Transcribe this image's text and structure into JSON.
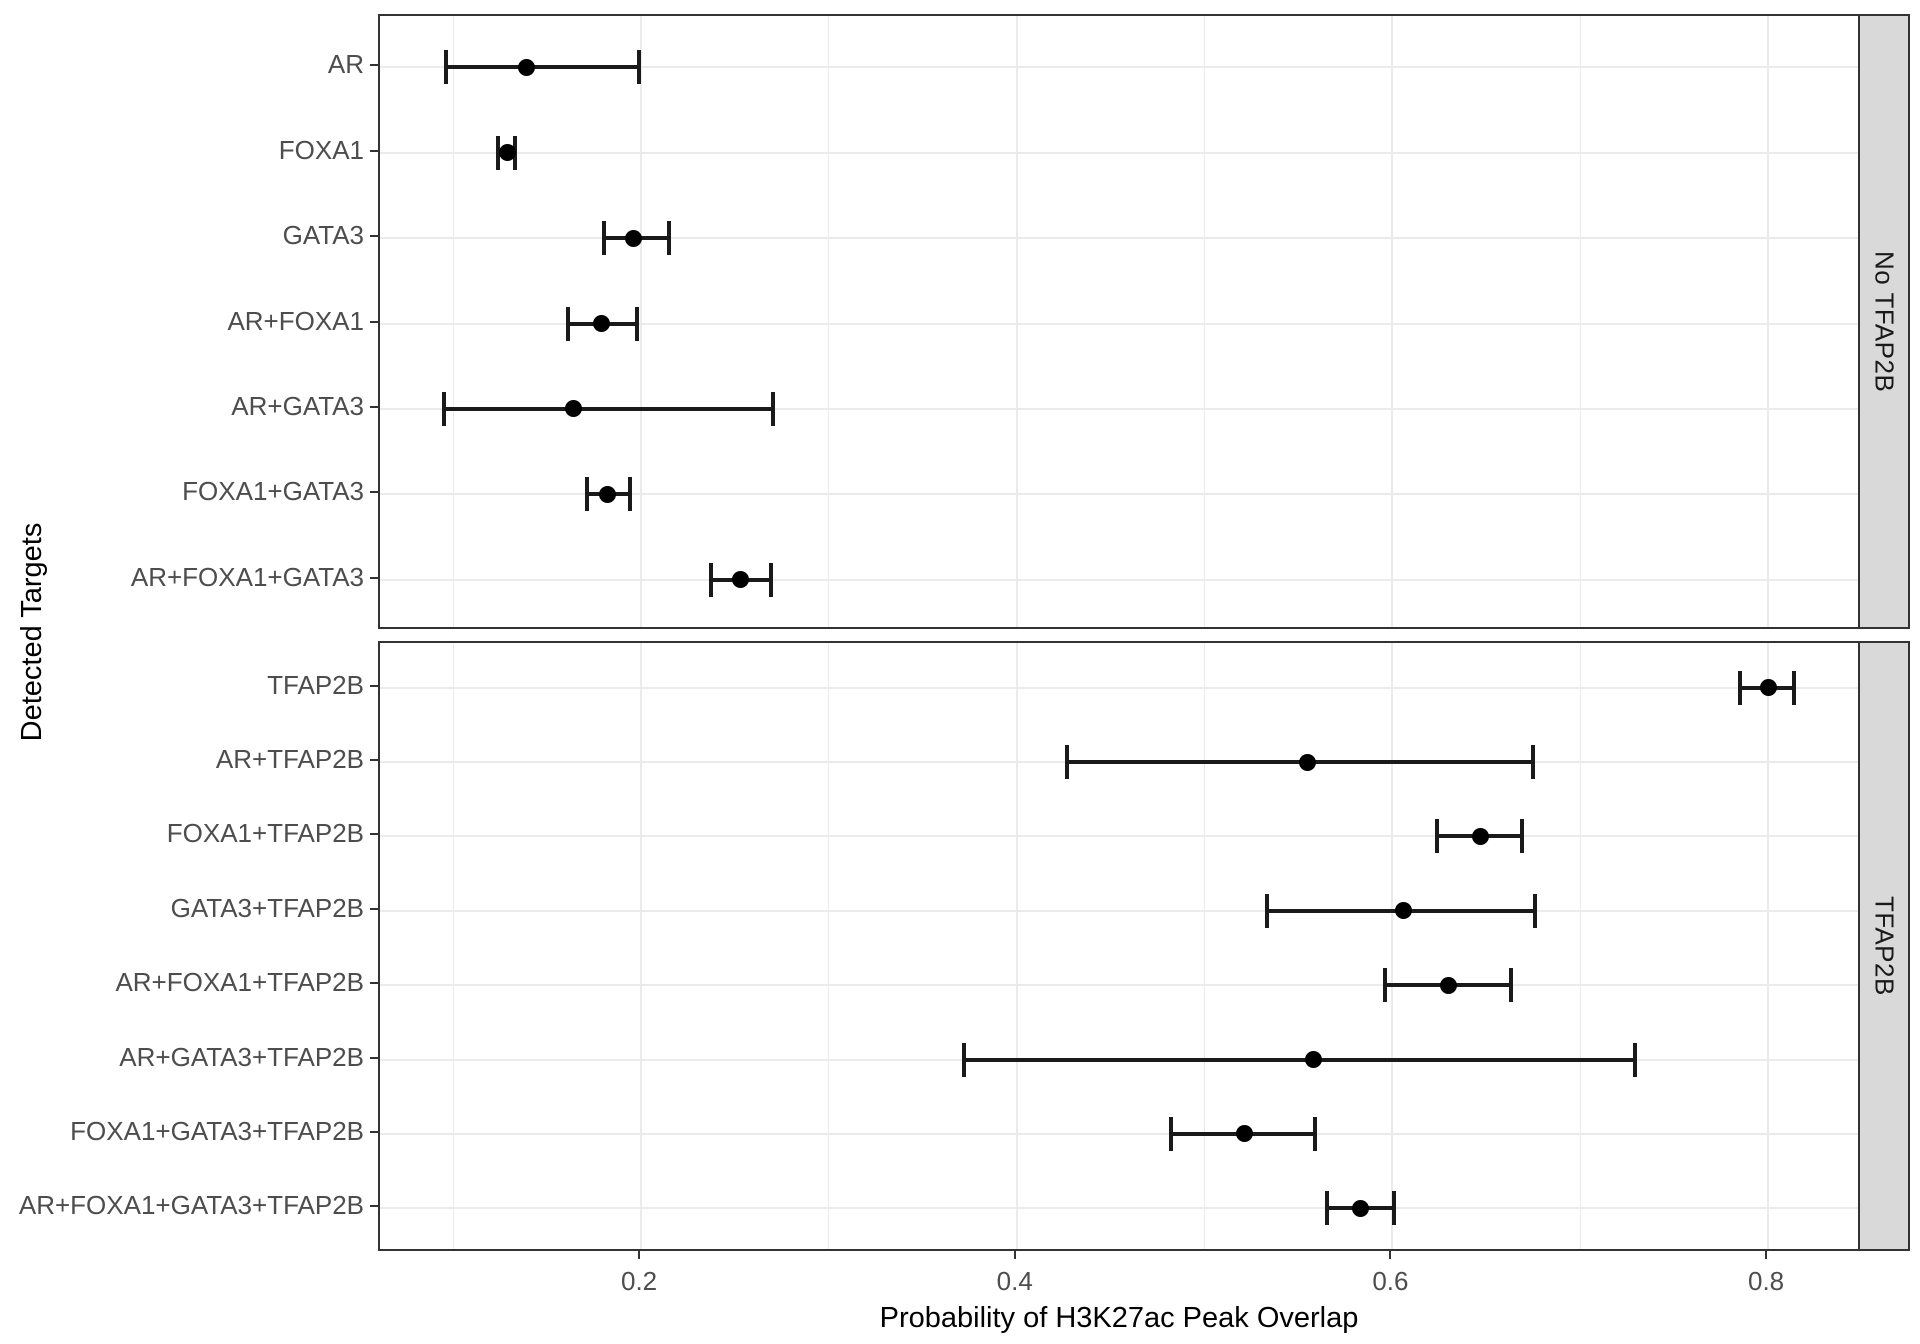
{
  "chart_data": {
    "type": "scatter",
    "subtype": "forest-plot-with-error-bars",
    "title": "",
    "xlabel": "Probability of H3K27ac Peak Overlap",
    "ylabel": "Detected Targets",
    "xlim": [
      0.061,
      0.85
    ],
    "x_ticks": [
      0.2,
      0.4,
      0.6,
      0.8
    ],
    "x_tick_labels": [
      "0.2",
      "0.4",
      "0.6",
      "0.8"
    ],
    "x_minor_ticks": [
      0.1,
      0.3,
      0.5,
      0.7
    ],
    "grid": "on",
    "legend": "none",
    "facet_position": "right",
    "panels": [
      {
        "strip_label": "No TFAP2B",
        "rows": [
          {
            "label": "AR",
            "estimate": 0.139,
            "ci_low": 0.096,
            "ci_high": 0.199
          },
          {
            "label": "FOXA1",
            "estimate": 0.129,
            "ci_low": 0.124,
            "ci_high": 0.133
          },
          {
            "label": "GATA3",
            "estimate": 0.196,
            "ci_low": 0.18,
            "ci_high": 0.215
          },
          {
            "label": "AR+FOXA1",
            "estimate": 0.179,
            "ci_low": 0.161,
            "ci_high": 0.198
          },
          {
            "label": "AR+GATA3",
            "estimate": 0.164,
            "ci_low": 0.095,
            "ci_high": 0.27
          },
          {
            "label": "FOXA1+GATA3",
            "estimate": 0.182,
            "ci_low": 0.171,
            "ci_high": 0.194
          },
          {
            "label": "AR+FOXA1+GATA3",
            "estimate": 0.253,
            "ci_low": 0.237,
            "ci_high": 0.269
          }
        ]
      },
      {
        "strip_label": "TFAP2B",
        "rows": [
          {
            "label": "TFAP2B",
            "estimate": 0.8,
            "ci_low": 0.785,
            "ci_high": 0.814
          },
          {
            "label": "AR+TFAP2B",
            "estimate": 0.555,
            "ci_low": 0.427,
            "ci_high": 0.675
          },
          {
            "label": "FOXA1+TFAP2B",
            "estimate": 0.647,
            "ci_low": 0.624,
            "ci_high": 0.669
          },
          {
            "label": "GATA3+TFAP2B",
            "estimate": 0.606,
            "ci_low": 0.533,
            "ci_high": 0.676
          },
          {
            "label": "AR+FOXA1+TFAP2B",
            "estimate": 0.63,
            "ci_low": 0.596,
            "ci_high": 0.663
          },
          {
            "label": "AR+GATA3+TFAP2B",
            "estimate": 0.558,
            "ci_low": 0.372,
            "ci_high": 0.729
          },
          {
            "label": "FOXA1+GATA3+TFAP2B",
            "estimate": 0.521,
            "ci_low": 0.482,
            "ci_high": 0.559
          },
          {
            "label": "AR+FOXA1+GATA3+TFAP2B",
            "estimate": 0.583,
            "ci_low": 0.565,
            "ci_high": 0.601
          }
        ]
      }
    ],
    "colors": {
      "background": "#ffffff",
      "gridline": "#ebebeb",
      "panel_border": "#333333",
      "point": "#000000",
      "error_bar": "#1a1a1a",
      "strip_background": "#d9d9d9",
      "strip_text": "#1a1a1a",
      "tick_label": "#4d4d4d",
      "axis_title": "#000000"
    }
  }
}
